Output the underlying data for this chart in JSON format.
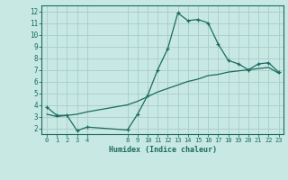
{
  "title": "",
  "xlabel": "Humidex (Indice chaleur)",
  "bg_color": "#c8e8e4",
  "grid_color": "#a8ccc8",
  "line_color": "#1a6b5e",
  "xlim": [
    -0.5,
    23.5
  ],
  "ylim": [
    1.5,
    12.5
  ],
  "yticks": [
    2,
    3,
    4,
    5,
    6,
    7,
    8,
    9,
    10,
    11,
    12
  ],
  "xticks": [
    0,
    1,
    2,
    3,
    4,
    8,
    9,
    10,
    11,
    12,
    13,
    14,
    15,
    16,
    17,
    18,
    19,
    20,
    21,
    22,
    23
  ],
  "line1_x": [
    0,
    1,
    2,
    3,
    4,
    8,
    9,
    10,
    11,
    12,
    13,
    14,
    15,
    16,
    17,
    18,
    19,
    20,
    21,
    22,
    23
  ],
  "line1_y": [
    3.8,
    3.1,
    3.1,
    1.8,
    2.1,
    1.85,
    3.2,
    4.8,
    7.0,
    8.8,
    11.85,
    11.2,
    11.3,
    11.0,
    9.2,
    7.8,
    7.5,
    7.0,
    7.5,
    7.6,
    6.8
  ],
  "line2_x": [
    0,
    1,
    2,
    3,
    4,
    8,
    9,
    10,
    11,
    12,
    13,
    14,
    15,
    16,
    17,
    18,
    19,
    20,
    21,
    22,
    23
  ],
  "line2_y": [
    3.2,
    3.0,
    3.1,
    3.2,
    3.4,
    4.0,
    4.3,
    4.7,
    5.1,
    5.4,
    5.7,
    6.0,
    6.2,
    6.5,
    6.6,
    6.8,
    6.9,
    7.0,
    7.1,
    7.2,
    6.7
  ]
}
